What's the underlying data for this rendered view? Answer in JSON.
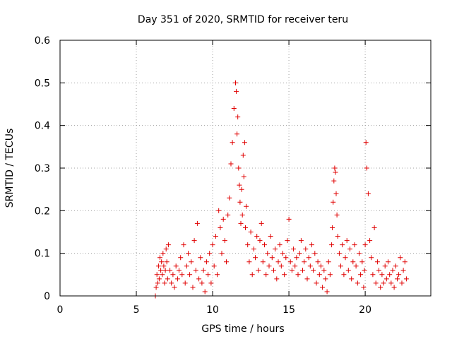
{
  "chart_data": {
    "type": "scatter",
    "title": "Day 351 of 2020, SRMTID for receiver teru",
    "xlabel": "GPS time / hours",
    "ylabel": "SRMTID / TECUs",
    "xlim": [
      0,
      24.3
    ],
    "ylim": [
      0,
      0.6
    ],
    "xticks": [
      0,
      5,
      10,
      15,
      20
    ],
    "xtick_labels": [
      "0",
      "5",
      "10",
      "15",
      "20"
    ],
    "yticks": [
      0,
      0.1,
      0.2,
      0.3,
      0.4,
      0.5,
      0.6
    ],
    "ytick_labels": [
      "0",
      "0.1",
      "0.2",
      "0.3",
      "0.4",
      "0.5",
      "0.6"
    ],
    "grid": true,
    "marker": "+",
    "color": "#e00000",
    "series": [
      {
        "name": "SRMTID",
        "x": [
          6.25,
          6.3,
          6.35,
          6.4,
          6.45,
          6.5,
          6.55,
          6.6,
          6.65,
          6.7,
          6.75,
          6.8,
          6.85,
          6.9,
          6.95,
          7.0,
          7.05,
          7.1,
          7.2,
          7.3,
          7.4,
          7.5,
          7.6,
          7.7,
          7.8,
          7.9,
          8.0,
          8.1,
          8.2,
          8.3,
          8.4,
          8.5,
          8.6,
          8.7,
          8.8,
          8.9,
          9.0,
          9.1,
          9.2,
          9.3,
          9.4,
          9.5,
          9.6,
          9.7,
          9.8,
          9.9,
          10.0,
          10.1,
          10.2,
          10.3,
          10.4,
          10.5,
          10.6,
          10.7,
          10.8,
          10.9,
          11.0,
          11.1,
          11.2,
          11.3,
          11.4,
          11.5,
          11.55,
          11.6,
          11.65,
          11.7,
          11.75,
          11.8,
          11.85,
          11.9,
          11.95,
          12.0,
          12.05,
          12.1,
          12.15,
          12.2,
          12.3,
          12.4,
          12.5,
          12.6,
          12.7,
          12.8,
          12.9,
          13.0,
          13.1,
          13.2,
          13.3,
          13.4,
          13.5,
          13.6,
          13.7,
          13.8,
          13.9,
          14.0,
          14.1,
          14.2,
          14.3,
          14.4,
          14.5,
          14.6,
          14.7,
          14.8,
          14.9,
          15.0,
          15.1,
          15.2,
          15.3,
          15.4,
          15.5,
          15.6,
          15.7,
          15.8,
          15.9,
          16.0,
          16.1,
          16.2,
          16.3,
          16.4,
          16.5,
          16.6,
          16.7,
          16.8,
          16.9,
          17.0,
          17.1,
          17.2,
          17.3,
          17.4,
          17.5,
          17.6,
          17.7,
          17.8,
          17.85,
          17.9,
          17.95,
          18.0,
          18.05,
          18.1,
          18.15,
          18.2,
          18.3,
          18.4,
          18.5,
          18.6,
          18.7,
          18.8,
          18.9,
          19.0,
          19.1,
          19.2,
          19.3,
          19.4,
          19.5,
          19.6,
          19.7,
          19.8,
          19.9,
          19.95,
          20.0,
          20.05,
          20.1,
          20.2,
          20.3,
          20.4,
          20.5,
          20.6,
          20.7,
          20.8,
          20.9,
          21.0,
          21.1,
          21.2,
          21.3,
          21.4,
          21.5,
          21.6,
          21.7,
          21.8,
          21.9,
          22.0,
          22.1,
          22.2,
          22.3,
          22.4,
          22.5,
          22.6,
          22.7
        ],
        "y": [
          0.0,
          0.02,
          0.05,
          0.03,
          0.07,
          0.04,
          0.09,
          0.06,
          0.08,
          0.05,
          0.1,
          0.07,
          0.03,
          0.06,
          0.11,
          0.08,
          0.04,
          0.12,
          0.06,
          0.03,
          0.05,
          0.02,
          0.07,
          0.04,
          0.06,
          0.09,
          0.05,
          0.12,
          0.03,
          0.07,
          0.1,
          0.05,
          0.08,
          0.02,
          0.13,
          0.06,
          0.17,
          0.04,
          0.09,
          0.03,
          0.06,
          0.01,
          0.08,
          0.05,
          0.1,
          0.03,
          0.12,
          0.07,
          0.14,
          0.05,
          0.2,
          0.16,
          0.1,
          0.18,
          0.13,
          0.08,
          0.19,
          0.23,
          0.31,
          0.36,
          0.44,
          0.5,
          0.48,
          0.38,
          0.42,
          0.3,
          0.26,
          0.22,
          0.17,
          0.25,
          0.19,
          0.33,
          0.28,
          0.36,
          0.16,
          0.21,
          0.12,
          0.08,
          0.15,
          0.05,
          0.11,
          0.09,
          0.14,
          0.06,
          0.13,
          0.17,
          0.08,
          0.12,
          0.05,
          0.1,
          0.07,
          0.14,
          0.09,
          0.06,
          0.11,
          0.04,
          0.08,
          0.12,
          0.07,
          0.1,
          0.05,
          0.09,
          0.13,
          0.18,
          0.08,
          0.06,
          0.11,
          0.07,
          0.09,
          0.05,
          0.1,
          0.13,
          0.06,
          0.08,
          0.11,
          0.04,
          0.09,
          0.07,
          0.12,
          0.06,
          0.1,
          0.03,
          0.08,
          0.05,
          0.07,
          0.02,
          0.06,
          0.04,
          0.01,
          0.08,
          0.05,
          0.12,
          0.16,
          0.22,
          0.27,
          0.3,
          0.29,
          0.24,
          0.19,
          0.14,
          0.1,
          0.07,
          0.12,
          0.05,
          0.09,
          0.13,
          0.06,
          0.11,
          0.04,
          0.08,
          0.12,
          0.07,
          0.03,
          0.1,
          0.05,
          0.08,
          0.02,
          0.06,
          0.12,
          0.36,
          0.3,
          0.24,
          0.13,
          0.09,
          0.05,
          0.16,
          0.03,
          0.08,
          0.06,
          0.02,
          0.05,
          0.03,
          0.07,
          0.04,
          0.08,
          0.05,
          0.03,
          0.06,
          0.02,
          0.07,
          0.04,
          0.05,
          0.09,
          0.03,
          0.06,
          0.08,
          0.04
        ]
      }
    ]
  }
}
